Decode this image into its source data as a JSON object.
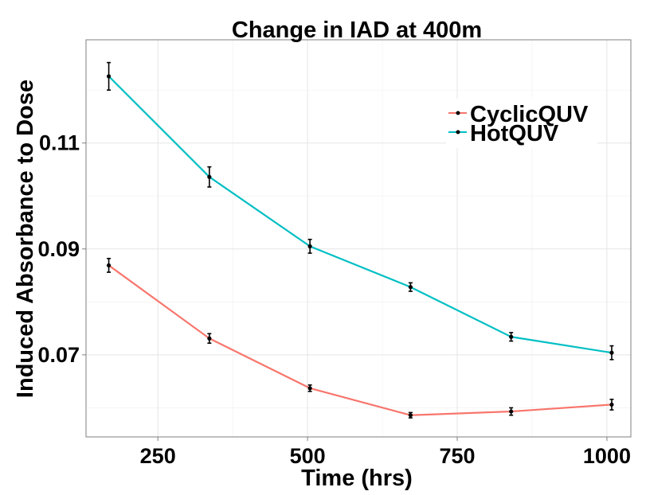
{
  "chart_data": {
    "type": "line",
    "title": "Change in IAD at 400m",
    "xlabel": "Time (hrs)",
    "ylabel": "Induced Absorbance to Dose",
    "xlim": [
      130,
      1040
    ],
    "ylim": [
      0.0545,
      0.1295
    ],
    "xticks": [
      250,
      500,
      750,
      1000
    ],
    "xtick_labels": [
      "250",
      "500",
      "750",
      "1000"
    ],
    "yticks": [
      0.07,
      0.09,
      0.11
    ],
    "ytick_labels": [
      "0.07",
      "0.09",
      "0.11"
    ],
    "grid": true,
    "legend_position": "top-right",
    "series": [
      {
        "name": "CyclicQUV",
        "color": "#F8766D",
        "x": [
          168,
          336,
          504,
          672,
          840,
          1008
        ],
        "y": [
          0.0869,
          0.0731,
          0.0637,
          0.0586,
          0.0593,
          0.0606
        ],
        "err": [
          0.0013,
          0.0009,
          0.0006,
          0.0005,
          0.0007,
          0.001
        ]
      },
      {
        "name": "HotQUV",
        "color": "#00BFC4",
        "x": [
          168,
          336,
          504,
          672,
          840,
          1008
        ],
        "y": [
          0.1226,
          0.1036,
          0.0905,
          0.0828,
          0.0734,
          0.0704
        ],
        "err": [
          0.0026,
          0.0019,
          0.0013,
          0.0008,
          0.0008,
          0.0013
        ]
      }
    ]
  }
}
